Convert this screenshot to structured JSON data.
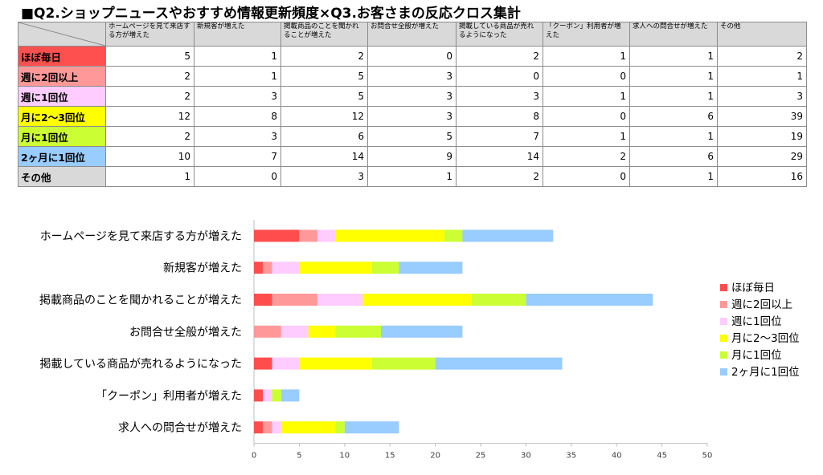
{
  "title": "■Q2.ショップニュースやおすすめ情報更新頻度×Q3.お客さまの反応クロス集計",
  "table": {
    "columns": [
      "ホームページを見て来店する方が増えた",
      "新規客が増えた",
      "掲載商品のことを聞かれることが増えた",
      "お問合せ全般が増えた",
      "掲載している商品が売れるようになった",
      "「クーポン」利用者が増えた",
      "求人への問合せが増えた",
      "その他"
    ],
    "rows": [
      {
        "label": "ほぼ毎日",
        "color": "#ff5050",
        "values": [
          5,
          1,
          2,
          0,
          2,
          1,
          1,
          2
        ]
      },
      {
        "label": "週に2回以上",
        "color": "#ff9999",
        "values": [
          2,
          1,
          5,
          3,
          0,
          0,
          1,
          1
        ]
      },
      {
        "label": "週に1回位",
        "color": "#ffccff",
        "values": [
          2,
          3,
          5,
          3,
          3,
          1,
          1,
          3
        ]
      },
      {
        "label": "月に2～3回位",
        "color": "#ffff00",
        "values": [
          12,
          8,
          12,
          3,
          8,
          0,
          6,
          39
        ]
      },
      {
        "label": "月に1回位",
        "color": "#ccff33",
        "values": [
          2,
          3,
          6,
          5,
          7,
          1,
          1,
          19
        ]
      },
      {
        "label": "2ヶ月に1回位",
        "color": "#99ccff",
        "values": [
          10,
          7,
          14,
          9,
          14,
          2,
          6,
          29
        ]
      },
      {
        "label": "その他",
        "color": "#d9d9d9",
        "values": [
          1,
          0,
          3,
          1,
          2,
          0,
          1,
          16
        ]
      }
    ]
  },
  "chart_data": {
    "type": "bar",
    "orientation": "horizontal",
    "stacked": true,
    "categories": [
      "ホームページを見て来店する方が増えた",
      "新規客が増えた",
      "掲載商品のことを聞かれることが増えた",
      "お問合せ全般が増えた",
      "掲載している商品が売れるようになった",
      "「クーポン」利用者が増えた",
      "求人への問合せが増えた"
    ],
    "series": [
      {
        "name": "ほぼ毎日",
        "color": "#ff4d4d",
        "values": [
          5,
          1,
          2,
          0,
          2,
          1,
          1
        ]
      },
      {
        "name": "週に2回以上",
        "color": "#ff9999",
        "values": [
          2,
          1,
          5,
          3,
          0,
          0,
          1
        ]
      },
      {
        "name": "週に1回位",
        "color": "#ffccff",
        "values": [
          2,
          3,
          5,
          3,
          3,
          1,
          1
        ]
      },
      {
        "name": "月に2～3回位",
        "color": "#ffff00",
        "values": [
          12,
          8,
          12,
          3,
          8,
          0,
          6
        ]
      },
      {
        "name": "月に1回位",
        "color": "#ccff33",
        "values": [
          2,
          3,
          6,
          5,
          7,
          1,
          1
        ]
      },
      {
        "name": "2ヶ月に1回位",
        "color": "#99ccff",
        "values": [
          10,
          7,
          14,
          9,
          14,
          2,
          6
        ]
      }
    ],
    "xlim": [
      0,
      50
    ],
    "xticks": [
      0,
      5,
      10,
      15,
      20,
      25,
      30,
      35,
      40,
      45,
      50
    ],
    "grid": false,
    "legend": "right"
  }
}
